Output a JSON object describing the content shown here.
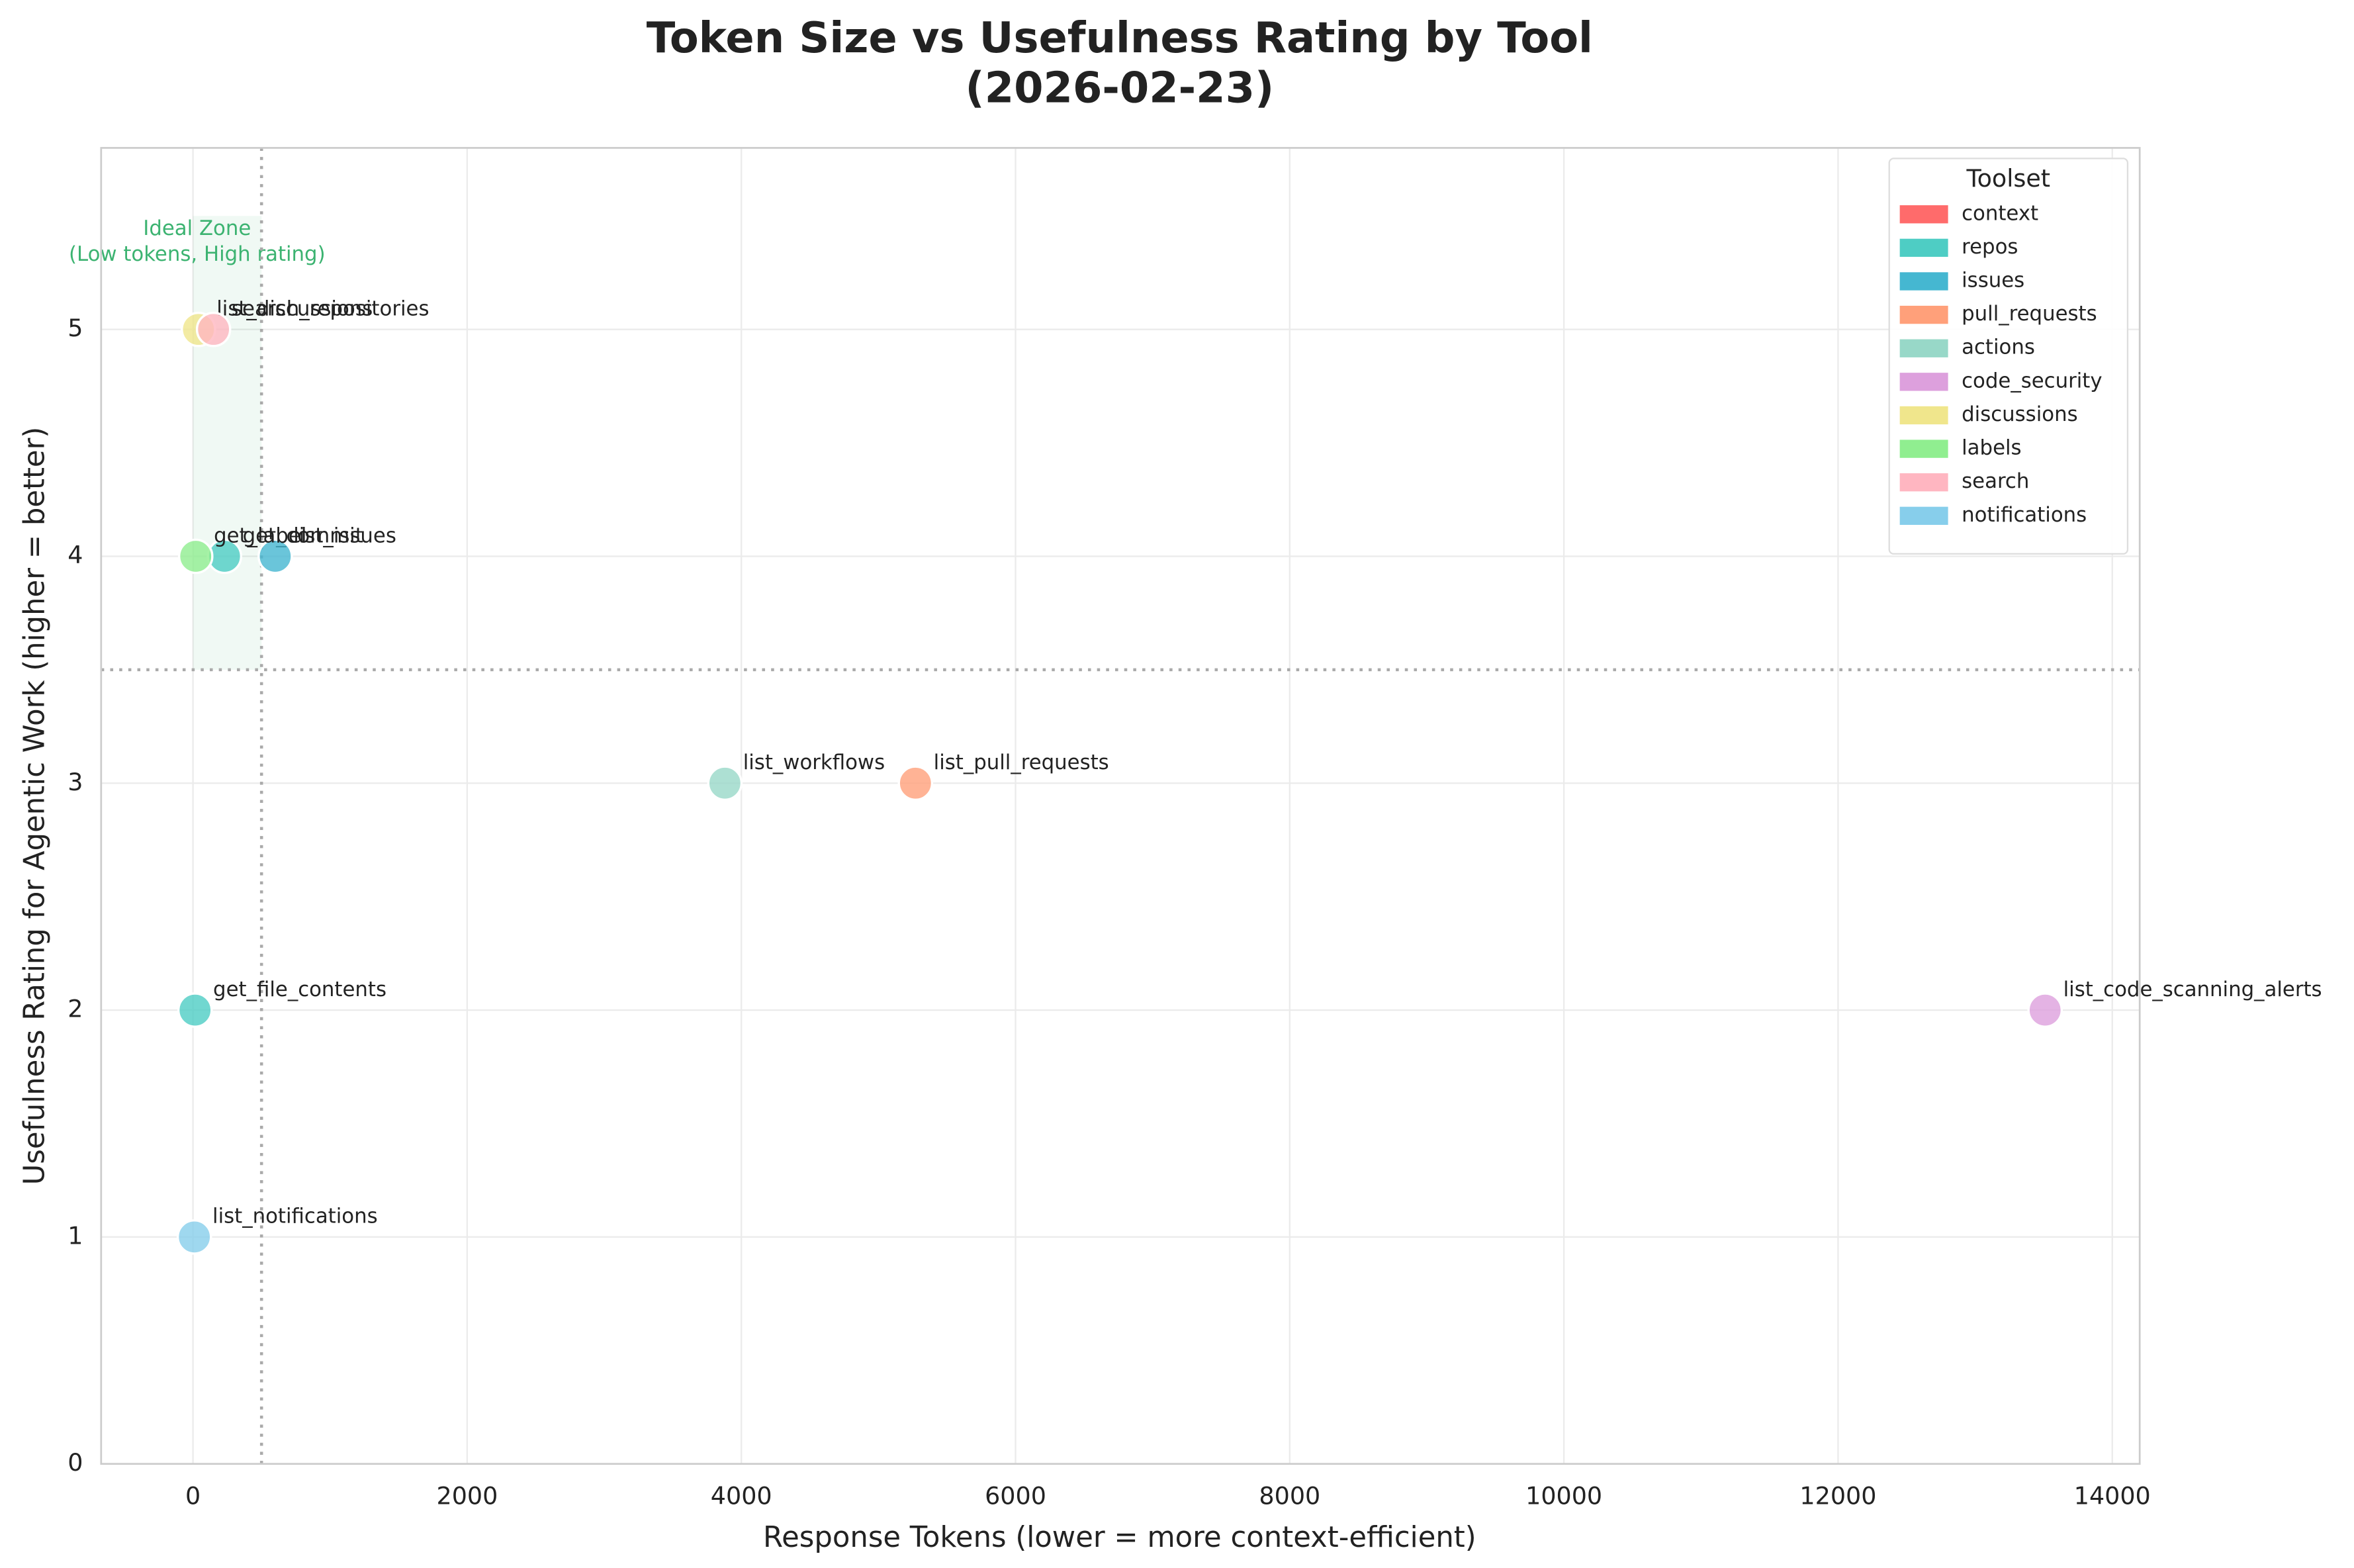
{
  "chart_data": {
    "type": "scatter",
    "title": [
      "Token Size vs Usefulness Rating by Tool",
      "(2026-02-23)"
    ],
    "x_label": "Response Tokens (lower = more context-efficient)",
    "y_label": "Usefulness Rating for Agentic Work (higher = better)",
    "xlim": [
      -670,
      14200
    ],
    "ylim": [
      0,
      5.8
    ],
    "xticks": [
      0,
      2000,
      4000,
      6000,
      8000,
      10000,
      12000,
      14000
    ],
    "yticks": [
      0,
      1,
      2,
      3,
      4,
      5
    ],
    "grid": true,
    "legend": {
      "title": "Toolset",
      "position": "upper right"
    },
    "ideal_zone": {
      "text": [
        "Ideal Zone",
        "(Low tokens, High rating)"
      ],
      "xlim": [
        0,
        500
      ],
      "ylim": [
        3.5,
        5.5
      ],
      "color": "#3cb371"
    },
    "threshold_x": 500,
    "threshold_y": 3.5,
    "series": [
      {
        "name": "context",
        "color": "#FF6B6B",
        "x": [],
        "y": [],
        "labels": []
      },
      {
        "name": "repos",
        "color": "#4ECDC4",
        "x": [
          230,
          15
        ],
        "y": [
          4,
          2
        ],
        "labels": [
          "get_commit",
          "get_file_contents"
        ]
      },
      {
        "name": "issues",
        "color": "#45B7D1",
        "x": [
          600
        ],
        "y": [
          4
        ],
        "labels": [
          "list_issues"
        ]
      },
      {
        "name": "pull_requests",
        "color": "#FFA07A",
        "x": [
          5270
        ],
        "y": [
          3
        ],
        "labels": [
          "list_pull_requests"
        ]
      },
      {
        "name": "actions",
        "color": "#98D8C8",
        "x": [
          3880
        ],
        "y": [
          3
        ],
        "labels": [
          "list_workflows"
        ]
      },
      {
        "name": "code_security",
        "color": "#DDA0DD",
        "x": [
          13510
        ],
        "y": [
          2
        ],
        "labels": [
          "list_code_scanning_alerts"
        ]
      },
      {
        "name": "discussions",
        "color": "#F0E68C",
        "x": [
          40
        ],
        "y": [
          5
        ],
        "labels": [
          "list_discussions"
        ]
      },
      {
        "name": "labels",
        "color": "#90EE90",
        "x": [
          20
        ],
        "y": [
          4
        ],
        "labels": [
          "get_label"
        ]
      },
      {
        "name": "search",
        "color": "#FFB6C1",
        "x": [
          150
        ],
        "y": [
          5
        ],
        "labels": [
          "search_repositories"
        ]
      },
      {
        "name": "notifications",
        "color": "#87CEEB",
        "x": [
          10
        ],
        "y": [
          1
        ],
        "labels": [
          "list_notifications"
        ]
      }
    ]
  }
}
